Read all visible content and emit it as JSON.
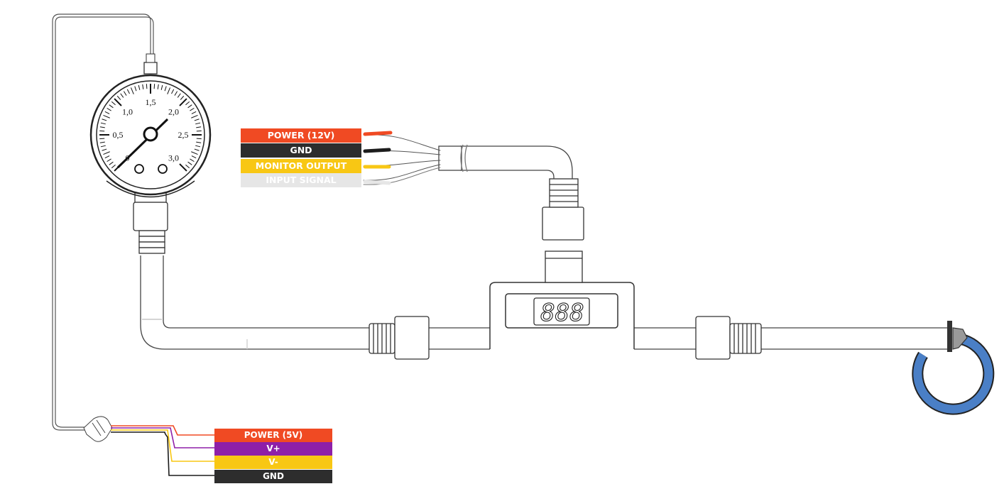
{
  "gauge": {
    "dial_labels": [
      "0",
      "0,5",
      "1,0",
      "1,5",
      "2,0",
      "2,5",
      "3,0"
    ]
  },
  "sensor_wires_12v": [
    {
      "label": "POWER (12V)",
      "color": "#f04a23",
      "text_color": "#ffffff"
    },
    {
      "label": "GND",
      "color": "#2d2d2d",
      "text_color": "#ffffff"
    },
    {
      "label": "MONITOR OUTPUT",
      "color": "#f8c714",
      "text_color": "#ffffff"
    },
    {
      "label": "INPUT SIGNAL",
      "color": "#e6e6e6",
      "text_color": "#ffffff"
    }
  ],
  "transducer_wires_5v": [
    {
      "label": "POWER (5V)",
      "color": "#f04a23",
      "text_color": "#ffffff"
    },
    {
      "label": "V+",
      "color": "#8e1fa8",
      "text_color": "#ffffff"
    },
    {
      "label": "V-",
      "color": "#f8c714",
      "text_color": "#ffffff"
    },
    {
      "label": "GND",
      "color": "#2d2d2d",
      "text_color": "#ffffff"
    }
  ],
  "display": {
    "digits": "888"
  },
  "colors": {
    "line": "#333333",
    "hose_loop": "#4a7fc6"
  }
}
